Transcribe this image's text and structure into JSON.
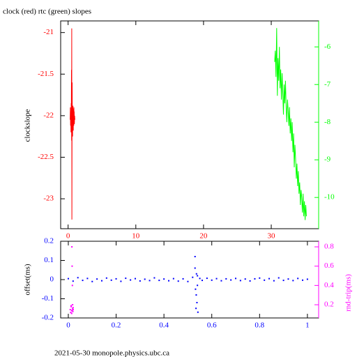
{
  "chart_data": [
    {
      "type": "line",
      "title": "clock (red) rtc (green) slopes",
      "ylabel": "clockslope",
      "xlim": [
        -1.1,
        37
      ],
      "xticks": [
        0,
        10,
        20,
        30
      ],
      "ylim": [
        -23.36,
        -20.86
      ],
      "yticks": [
        -21,
        -21.5,
        -22,
        -22.5,
        -23
      ],
      "y2lim": [
        -10.83,
        -5.31
      ],
      "y2ticks": [
        -6,
        -7,
        -8,
        -9,
        -10
      ],
      "tick_colors": {
        "x": "#ff0000",
        "y": "#ff0000",
        "y2": "#00ff00"
      },
      "series": [
        {
          "name": "clock",
          "color": "#ff0000",
          "x": [
            0.3,
            0.33,
            0.36,
            0.39,
            0.42,
            0.45,
            0.48,
            0.5,
            0.52,
            0.54,
            0.56,
            0.58,
            0.6,
            0.62,
            0.64,
            0.66,
            0.68,
            0.7,
            0.72,
            0.74,
            0.76,
            0.78,
            0.8,
            0.82,
            0.84,
            0.86,
            0.88,
            0.9,
            0.93,
            0.96,
            1.0
          ],
          "values": [
            -22.05,
            -21.9,
            -22.12,
            -21.95,
            -22.2,
            -21.85,
            -22.0,
            -21.45,
            -22.3,
            -20.95,
            -23.25,
            -22.1,
            -21.6,
            -22.15,
            -21.9,
            -22.25,
            -21.95,
            -22.1,
            -21.88,
            -22.05,
            -22.18,
            -21.92,
            -22.08,
            -21.97,
            -22.12,
            -21.9,
            -22.06,
            -21.95,
            -22.1,
            -22.0,
            -22.05
          ]
        },
        {
          "name": "rtc",
          "color": "#00ff00",
          "axis": "y2",
          "x": [
            30.5,
            30.6,
            30.7,
            30.8,
            30.9,
            31.0,
            31.1,
            31.2,
            31.3,
            31.4,
            31.5,
            31.6,
            31.7,
            31.8,
            31.9,
            32.0,
            32.1,
            32.2,
            32.3,
            32.4,
            32.5,
            32.6,
            32.7,
            32.8,
            32.9,
            33.0,
            33.1,
            33.2,
            33.3,
            33.4,
            33.5,
            33.6,
            33.7,
            33.8,
            33.9,
            34.0,
            34.1,
            34.2,
            34.3,
            34.4,
            34.5,
            34.6,
            34.7,
            34.8,
            34.9,
            35.0,
            35.1,
            35.2
          ],
          "values": [
            -6.4,
            -6.1,
            -6.8,
            -5.5,
            -7.3,
            -6.3,
            -6.9,
            -6.0,
            -7.1,
            -6.6,
            -7.4,
            -6.7,
            -7.2,
            -7.8,
            -7.0,
            -7.5,
            -6.9,
            -7.6,
            -8.0,
            -7.4,
            -7.7,
            -8.1,
            -7.6,
            -8.3,
            -7.9,
            -8.5,
            -8.0,
            -8.8,
            -8.3,
            -9.2,
            -8.6,
            -9.0,
            -9.5,
            -9.1,
            -9.7,
            -9.3,
            -9.9,
            -9.6,
            -10.2,
            -9.8,
            -10.0,
            -10.4,
            -9.9,
            -10.5,
            -10.1,
            -10.6,
            -10.2,
            -10.5
          ]
        }
      ]
    },
    {
      "type": "scatter",
      "ylabel": "offset(ms)",
      "y2label": "rnd-trip(ms)",
      "xlim": [
        -0.032,
        1.047
      ],
      "xticks": [
        0,
        0.2,
        0.4,
        0.6,
        0.8,
        1
      ],
      "ylim": [
        -0.2,
        0.2
      ],
      "yticks": [
        -0.2,
        -0.1,
        0,
        0.1,
        0.2
      ],
      "y2lim": [
        0.063,
        0.858
      ],
      "y2ticks": [
        0.2,
        0.4,
        0.6,
        0.8
      ],
      "tick_colors": {
        "x": "#0000ff",
        "y": "#0000ff",
        "y2": "#ff00ff"
      },
      "series": [
        {
          "name": "offset",
          "color": "#0000ff",
          "x": [
            0,
            0.02,
            0.04,
            0.06,
            0.08,
            0.1,
            0.12,
            0.14,
            0.16,
            0.18,
            0.2,
            0.22,
            0.24,
            0.26,
            0.28,
            0.3,
            0.32,
            0.34,
            0.36,
            0.38,
            0.4,
            0.42,
            0.44,
            0.46,
            0.48,
            0.5,
            0.52,
            0.53,
            0.53,
            0.532,
            0.534,
            0.535,
            0.536,
            0.538,
            0.54,
            0.54,
            0.542,
            0.55,
            0.56,
            0.58,
            0.6,
            0.62,
            0.64,
            0.66,
            0.68,
            0.7,
            0.72,
            0.74,
            0.76,
            0.78,
            0.8,
            0.82,
            0.84,
            0.86,
            0.88,
            0.9,
            0.92,
            0.94,
            0.96,
            0.98,
            1.0
          ],
          "values": [
            0.005,
            -0.008,
            0.01,
            -0.004,
            0.006,
            -0.01,
            0.003,
            -0.006,
            0.008,
            -0.003,
            0.004,
            -0.009,
            0.007,
            -0.002,
            0.005,
            -0.007,
            0.002,
            -0.005,
            0.009,
            -0.004,
            0.003,
            -0.006,
            0.005,
            -0.008,
            0.004,
            -0.01,
            0.012,
            0.12,
            0.06,
            -0.05,
            -0.15,
            -0.08,
            0.03,
            -0.12,
            -0.03,
            0.02,
            -0.17,
            0.006,
            -0.004,
            0.007,
            -0.003,
            0.005,
            -0.006,
            0.004,
            -0.002,
            0.006,
            -0.005,
            0.003,
            -0.007,
            0.004,
            0.008,
            -0.003,
            0.005,
            -0.006,
            0.009,
            -0.004,
            0.003,
            -0.005,
            0.006,
            -0.003,
            0.002
          ]
        },
        {
          "name": "rnd-trip",
          "color": "#ff00ff",
          "axis": "y2",
          "x": [
            0.008,
            0.01,
            0.012,
            0.014,
            0.015,
            0.016,
            0.017,
            0.018,
            0.019,
            0.02,
            0.012,
            0.014,
            0.016,
            0.018,
            0.02
          ],
          "values": [
            0.15,
            0.12,
            0.18,
            0.14,
            0.8,
            0.6,
            0.4,
            0.16,
            0.13,
            0.17,
            0.19,
            0.11,
            0.14,
            0.2,
            0.15
          ]
        }
      ]
    }
  ],
  "footer": "2021-05-30  monopole.physics.ubc.ca"
}
